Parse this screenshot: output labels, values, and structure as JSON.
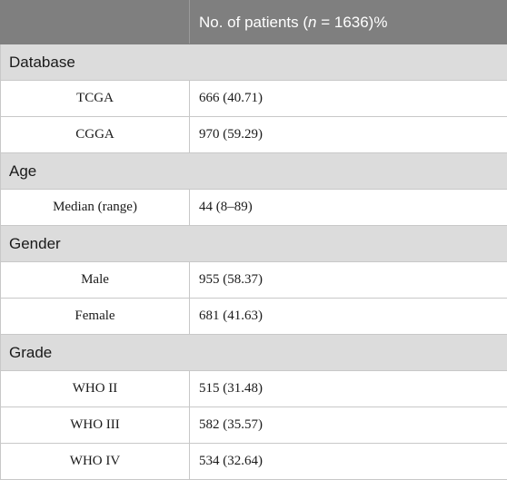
{
  "header": {
    "col1": "",
    "col2_prefix": "No. of patients (",
    "col2_n": "n",
    "col2_suffix": " = 1636)%"
  },
  "sections": [
    {
      "title": "Database",
      "rows": [
        {
          "label": "TCGA",
          "value": "666 (40.71)"
        },
        {
          "label": "CGGA",
          "value": "970 (59.29)"
        }
      ]
    },
    {
      "title": "Age",
      "rows": [
        {
          "label": "Median (range)",
          "value": "44 (8–89)"
        }
      ]
    },
    {
      "title": "Gender",
      "rows": [
        {
          "label": "Male",
          "value": "955 (58.37)"
        },
        {
          "label": "Female",
          "value": "681 (41.63)"
        }
      ]
    },
    {
      "title": "Grade",
      "rows": [
        {
          "label": "WHO II",
          "value": "515 (31.48)"
        },
        {
          "label": "WHO III",
          "value": "582 (35.57)"
        },
        {
          "label": "WHO IV",
          "value": "534 (32.64)"
        }
      ]
    }
  ]
}
